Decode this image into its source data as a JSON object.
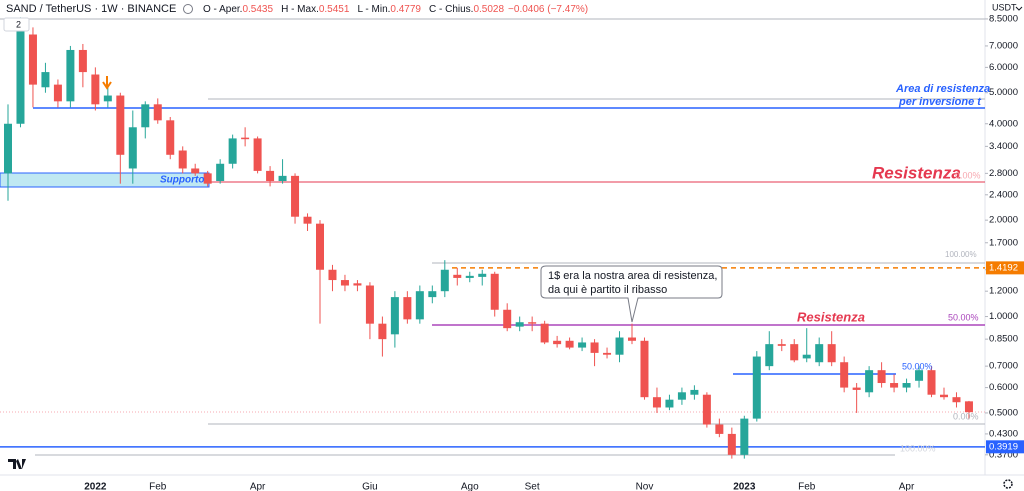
{
  "header": {
    "symbol": "SAND / TetherUS · 1W · BINANCE",
    "indicators": "2",
    "ohlc": [
      {
        "label": "O - Aper.",
        "value": "0.5435"
      },
      {
        "label": "H - Max.",
        "value": "0.5451"
      },
      {
        "label": "L - Min.",
        "value": "0.4779"
      },
      {
        "label": "C - Chius.",
        "value": "0.5028"
      }
    ],
    "change": "−0.0406 (−7.47%)"
  },
  "chart_data": {
    "type": "candlestick",
    "currency": "USDT",
    "log_scale": true,
    "up_color": "#26a69a",
    "down_color": "#ef5350",
    "categories": [
      null,
      null,
      null,
      null,
      null,
      null,
      null,
      "2022",
      null,
      null,
      null,
      null,
      "Feb",
      null,
      null,
      null,
      null,
      null,
      null,
      null,
      "Apr",
      null,
      null,
      null,
      null,
      null,
      null,
      null,
      null,
      "Giu",
      null,
      null,
      null,
      null,
      null,
      null,
      null,
      "Ago",
      null,
      null,
      null,
      null,
      "Set",
      null,
      null,
      null,
      null,
      null,
      null,
      null,
      null,
      "Nov",
      null,
      null,
      null,
      null,
      null,
      null,
      null,
      "2023",
      null,
      null,
      null,
      null,
      "Feb",
      null,
      null,
      null,
      null,
      null,
      null,
      null,
      "Apr",
      null,
      null,
      null,
      null,
      null
    ],
    "open": [
      2.8,
      4.0,
      7.6,
      5.2,
      5.3,
      4.7,
      6.8,
      5.7,
      4.7,
      4.9,
      2.9,
      3.9,
      4.6,
      4.1,
      3.3,
      2.9,
      2.8,
      2.65,
      3.0,
      3.62,
      3.6,
      2.85,
      2.65,
      2.75,
      2.05,
      1.95,
      1.4,
      1.3,
      1.27,
      1.25,
      0.95,
      0.88,
      1.15,
      0.98,
      1.15,
      1.2,
      1.35,
      1.32,
      1.33,
      1.36,
      1.05,
      0.93,
      0.96,
      0.95,
      0.84,
      0.84,
      0.8,
      0.83,
      0.77,
      0.76,
      0.86,
      0.84,
      0.56,
      0.52,
      0.55,
      0.57,
      0.57,
      0.46,
      0.43,
      0.37,
      0.48,
      0.7,
      0.82,
      0.82,
      0.74,
      0.72,
      0.82,
      0.72,
      0.6,
      0.58,
      0.68,
      0.62,
      0.6,
      0.63,
      0.68,
      0.57,
      0.56,
      0.5435
    ],
    "high": [
      4.6,
      8.6,
      8.0,
      6.2,
      5.5,
      7.0,
      7.1,
      6.0,
      5.2,
      5.0,
      4.4,
      4.7,
      4.8,
      4.2,
      3.4,
      3.0,
      2.85,
      3.1,
      3.7,
      3.9,
      3.65,
      2.95,
      3.1,
      2.8,
      2.1,
      2.0,
      1.45,
      1.35,
      1.3,
      1.28,
      1.0,
      1.2,
      1.2,
      1.25,
      1.25,
      1.5,
      1.42,
      1.38,
      1.4,
      1.38,
      1.1,
      1.0,
      1.0,
      0.97,
      0.87,
      0.86,
      0.86,
      0.85,
      0.8,
      0.9,
      0.95,
      0.86,
      0.6,
      0.57,
      0.6,
      0.61,
      0.58,
      0.48,
      0.45,
      0.49,
      0.78,
      0.9,
      0.85,
      0.85,
      0.92,
      0.86,
      0.9,
      0.75,
      0.62,
      0.7,
      0.72,
      0.66,
      0.64,
      0.7,
      0.7,
      0.6,
      0.58,
      0.5451
    ],
    "low": [
      2.3,
      3.9,
      4.5,
      5.0,
      4.5,
      4.5,
      5.2,
      4.4,
      4.5,
      2.6,
      2.6,
      3.6,
      4.0,
      3.1,
      2.8,
      2.75,
      2.55,
      2.6,
      2.9,
      3.4,
      2.8,
      2.55,
      2.6,
      1.95,
      1.85,
      0.95,
      1.2,
      1.2,
      1.2,
      0.85,
      0.75,
      0.8,
      0.95,
      0.95,
      1.1,
      1.15,
      1.25,
      1.28,
      1.25,
      1.0,
      0.9,
      0.9,
      0.9,
      0.82,
      0.8,
      0.79,
      0.78,
      0.7,
      0.74,
      0.72,
      0.82,
      0.55,
      0.5,
      0.51,
      0.53,
      0.55,
      0.45,
      0.42,
      0.36,
      0.36,
      0.47,
      0.68,
      0.78,
      0.72,
      0.72,
      0.7,
      0.7,
      0.58,
      0.5,
      0.56,
      0.6,
      0.58,
      0.58,
      0.6,
      0.56,
      0.55,
      0.52,
      0.4779
    ],
    "close": [
      4.0,
      8.0,
      5.3,
      5.8,
      4.7,
      6.8,
      5.8,
      4.6,
      4.9,
      3.2,
      3.9,
      4.6,
      4.1,
      3.2,
      2.9,
      2.8,
      2.6,
      3.0,
      3.6,
      3.58,
      2.85,
      2.65,
      2.75,
      2.05,
      1.95,
      1.4,
      1.3,
      1.25,
      1.25,
      0.95,
      0.85,
      1.15,
      0.98,
      1.2,
      1.2,
      1.4,
      1.32,
      1.34,
      1.36,
      1.05,
      0.92,
      0.96,
      0.95,
      0.83,
      0.82,
      0.8,
      0.83,
      0.77,
      0.76,
      0.86,
      0.84,
      0.56,
      0.52,
      0.55,
      0.58,
      0.59,
      0.46,
      0.43,
      0.37,
      0.48,
      0.75,
      0.82,
      0.81,
      0.73,
      0.76,
      0.82,
      0.72,
      0.6,
      0.59,
      0.68,
      0.62,
      0.6,
      0.62,
      0.68,
      0.57,
      0.56,
      0.54,
      0.5028
    ],
    "ylim": [
      0.32,
      9.74
    ],
    "yticks": [
      {
        "value": 8.5,
        "label": "8.5000"
      },
      {
        "value": 7,
        "label": "7.0000"
      },
      {
        "value": 6,
        "label": "6.0000"
      },
      {
        "value": 5,
        "label": "5.0000"
      },
      {
        "value": 4,
        "label": "4.0000"
      },
      {
        "value": 3.4,
        "label": "3.4000"
      },
      {
        "value": 2.8,
        "label": "2.8000"
      },
      {
        "value": 2.4,
        "label": "2.4000"
      },
      {
        "value": 2,
        "label": "2.0000"
      },
      {
        "value": 1.7,
        "label": "1.7000"
      },
      {
        "value": 1.4,
        "label": "1.4000"
      },
      {
        "value": 1.2,
        "label": "1.2000"
      },
      {
        "value": 1,
        "label": "1.0000"
      },
      {
        "value": 0.85,
        "label": "0.8500"
      },
      {
        "value": 0.7,
        "label": "0.7000"
      },
      {
        "value": 0.6,
        "label": "0.6000"
      },
      {
        "value": 0.5,
        "label": "0.5000"
      },
      {
        "value": 0.43,
        "label": "0.4300"
      },
      {
        "value": 0.37,
        "label": "0.3700"
      }
    ],
    "price_labels": [
      {
        "value": 1.4192,
        "label": "1.4192",
        "color": "#f57c00"
      },
      {
        "value": 0.3919,
        "label": "0.3919",
        "color": "#2962ff"
      }
    ],
    "annotations": [
      "Area di resistenza",
      "per inversione t",
      "Resistenza",
      "0.00%",
      "Supporto",
      "1$ era la nostra area di resistenza,",
      "da qui è partito il ribasso",
      "100.00%",
      "Resistenza",
      "50.00%",
      "50.00%",
      "0.00%",
      "100.00%"
    ]
  }
}
